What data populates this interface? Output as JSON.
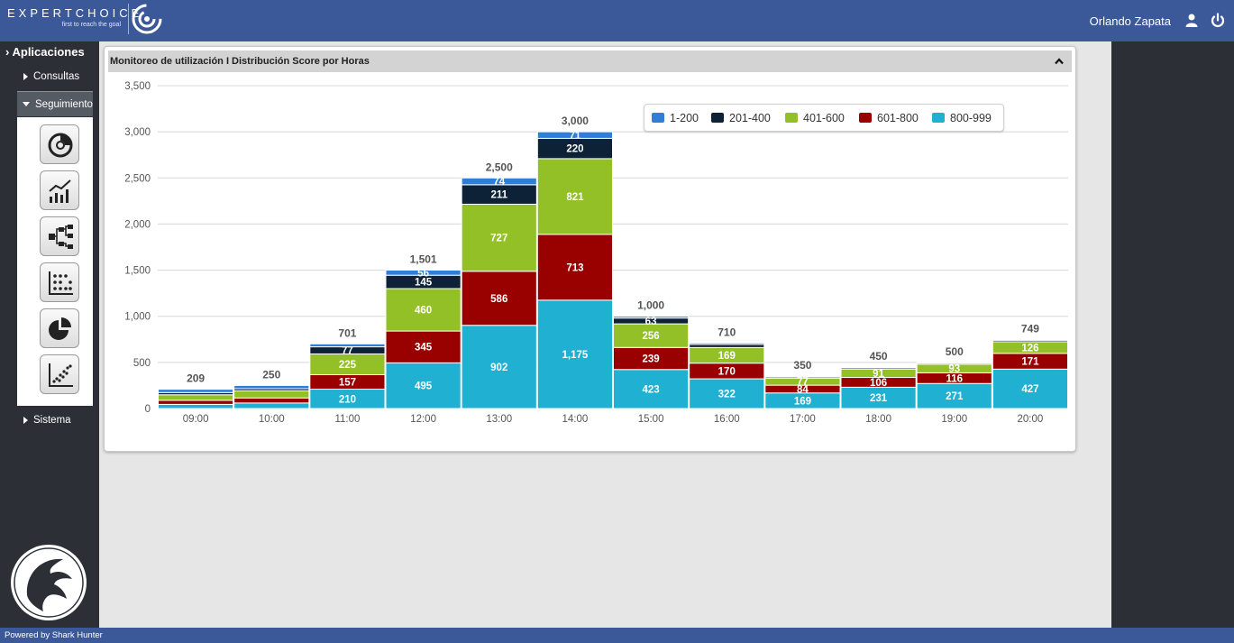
{
  "header": {
    "brand_name": "EXPERTCHOICE",
    "brand_tagline": "first to reach the goal",
    "user_name": "Orlando Zapata",
    "user_icon": "user-icon",
    "power_icon": "power-icon"
  },
  "sidebar": {
    "root_label": "Aplicaciones",
    "items": [
      {
        "label": "Consultas"
      },
      {
        "label": "Seguimiento"
      },
      {
        "label": "Sistema"
      }
    ],
    "tools": [
      "donut-chart-icon",
      "line-trend-icon",
      "hierarchy-icon",
      "scatter-grid-icon",
      "pie-chart-icon",
      "scatter-plot-icon"
    ]
  },
  "footer": {
    "text": "Powered by Shark Hunter"
  },
  "panel": {
    "title": "Monitoreo de utilización I Distribución Score por Horas"
  },
  "colors": {
    "header_bg": "#3b5998",
    "sidebar_bg": "#2c2f36"
  },
  "chart_data": {
    "type": "bar",
    "stacked": true,
    "categories": [
      "09:00",
      "10:00",
      "11:00",
      "12:00",
      "13:00",
      "14:00",
      "15:00",
      "16:00",
      "17:00",
      "18:00",
      "19:00",
      "20:00"
    ],
    "ylim": [
      0,
      3500
    ],
    "yticks": [
      "0",
      "500",
      "1,000",
      "1,500",
      "2,000",
      "2,500",
      "3,000",
      "3,500"
    ],
    "grid": true,
    "legend_position": "top-right",
    "series": [
      {
        "name": "800-999",
        "color": "#1fb0d2",
        "values": [
          45,
          60,
          210,
          495,
          902,
          1175,
          423,
          322,
          169,
          231,
          271,
          427
        ]
      },
      {
        "name": "601-800",
        "color": "#990000",
        "values": [
          44,
          55,
          157,
          345,
          586,
          713,
          239,
          170,
          84,
          106,
          116,
          171
        ]
      },
      {
        "name": "401-600",
        "color": "#92c026",
        "values": [
          60,
          78,
          225,
          460,
          727,
          821,
          256,
          169,
          77,
          91,
          93,
          126
        ]
      },
      {
        "name": "201-400",
        "color": "#0d2236",
        "values": [
          24,
          22,
          77,
          145,
          211,
          220,
          63,
          33,
          14,
          15,
          12,
          16
        ]
      },
      {
        "name": "1-200",
        "color": "#2f7ed8",
        "values": [
          36,
          35,
          32,
          56,
          74,
          71,
          19,
          16,
          6,
          7,
          8,
          9
        ]
      }
    ],
    "segment_labels": [
      [
        "",
        "",
        "",
        "",
        ""
      ],
      [
        "",
        "",
        "",
        "",
        ""
      ],
      [
        "210",
        "157",
        "225",
        "77",
        ""
      ],
      [
        "495",
        "345",
        "460",
        "145",
        "56"
      ],
      [
        "902",
        "586",
        "727",
        "211",
        "74"
      ],
      [
        "1,175",
        "713",
        "821",
        "220",
        "71"
      ],
      [
        "423",
        "239",
        "256",
        "63",
        ""
      ],
      [
        "322",
        "170",
        "169",
        "",
        ""
      ],
      [
        "169",
        "84",
        "77",
        "",
        ""
      ],
      [
        "231",
        "106",
        "91",
        "",
        ""
      ],
      [
        "271",
        "116",
        "93",
        "",
        ""
      ],
      [
        "427",
        "171",
        "126",
        "",
        ""
      ]
    ],
    "totals": [
      "209",
      "250",
      "701",
      "1,501",
      "2,500",
      "3,000",
      "1,000",
      "710",
      "350",
      "450",
      "500",
      "749"
    ]
  }
}
